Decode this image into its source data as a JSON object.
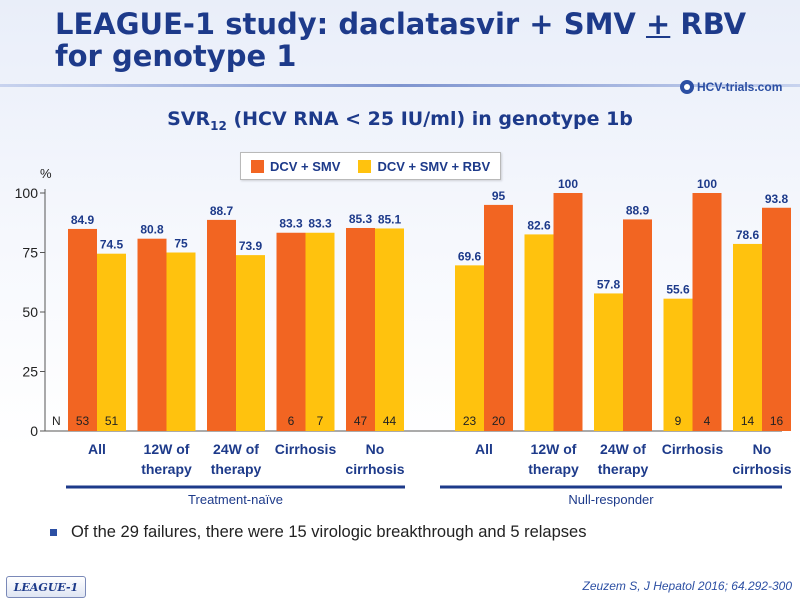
{
  "slide": {
    "title_line1_pre": "LEAGUE-1 study: daclatasvir + SMV ",
    "title_line1_pm": "+",
    "title_line1_post": " RBV",
    "title_line2": "for genotype 1",
    "logo_text": "HCV-trials.com",
    "logo_icon": "hcv-logo-icon",
    "note": "Of the 29 failures, there were 15 virologic breakthrough and 5 relapses",
    "tag": "LEAGUE-1",
    "reference": "Zeuzem S, J Hepatol 2016; 64.292-300"
  },
  "chart_data": {
    "type": "bar",
    "title_main": "SVR",
    "title_sub": "12",
    "title_rest": " (HCV RNA < 25 IU/ml) in genotype 1b",
    "ylabel": "%",
    "ylim": [
      0,
      100
    ],
    "yticks": [
      "0",
      "25",
      "50",
      "75",
      "100"
    ],
    "n_label": "N",
    "colors": {
      "DCV + SMV": "#f26522",
      "DCV + SMV + RBV": "#ffc20e"
    },
    "series": [
      {
        "name": "DCV + SMV",
        "color": "#f26522"
      },
      {
        "name": "DCV + SMV + RBV",
        "color": "#ffc20e"
      }
    ],
    "groups": [
      {
        "name": "Treatment-naïve",
        "categories": [
          {
            "label": [
              "All"
            ],
            "bars": [
              {
                "series": "DCV + SMV",
                "value": 84.9,
                "label": "84.9",
                "n": "53"
              },
              {
                "series": "DCV + SMV + RBV",
                "value": 74.5,
                "label": "74.5",
                "n": "51"
              }
            ]
          },
          {
            "label": [
              "12W of",
              "therapy"
            ],
            "bars": [
              {
                "series": "DCV + SMV",
                "value": 80.8,
                "label": "80.8",
                "n": ""
              },
              {
                "series": "DCV + SMV + RBV",
                "value": 75,
                "label": "75",
                "n": ""
              }
            ]
          },
          {
            "label": [
              "24W of",
              "therapy"
            ],
            "bars": [
              {
                "series": "DCV + SMV",
                "value": 88.7,
                "label": "88.7",
                "n": ""
              },
              {
                "series": "DCV + SMV + RBV",
                "value": 73.9,
                "label": "73.9",
                "n": ""
              }
            ]
          },
          {
            "label": [
              "Cirrhosis"
            ],
            "bars": [
              {
                "series": "DCV + SMV",
                "value": 83.3,
                "label": "83.3",
                "n": "6"
              },
              {
                "series": "DCV + SMV + RBV",
                "value": 83.3,
                "label": "83.3",
                "n": "7"
              }
            ]
          },
          {
            "label": [
              "No",
              "cirrhosis"
            ],
            "bars": [
              {
                "series": "DCV + SMV",
                "value": 85.3,
                "label": "85.3",
                "n": "47"
              },
              {
                "series": "DCV + SMV + RBV",
                "value": 85.1,
                "label": "85.1",
                "n": "44"
              }
            ]
          }
        ]
      },
      {
        "name": "Null-responder",
        "categories": [
          {
            "label": [
              "All"
            ],
            "bars": [
              {
                "series": "DCV + SMV + RBV",
                "value": 69.6,
                "label": "69.6",
                "n": "23"
              },
              {
                "series": "DCV + SMV",
                "value": 95,
                "label": "95",
                "n": "20"
              }
            ]
          },
          {
            "label": [
              "12W of",
              "therapy"
            ],
            "bars": [
              {
                "series": "DCV + SMV + RBV",
                "value": 82.6,
                "label": "82.6",
                "n": ""
              },
              {
                "series": "DCV + SMV",
                "value": 100,
                "label": "100",
                "n": ""
              }
            ]
          },
          {
            "label": [
              "24W of",
              "therapy"
            ],
            "bars": [
              {
                "series": "DCV + SMV + RBV",
                "value": 57.8,
                "label": "57.8",
                "n": ""
              },
              {
                "series": "DCV + SMV",
                "value": 88.9,
                "label": "88.9",
                "n": ""
              }
            ]
          },
          {
            "label": [
              "Cirrhosis"
            ],
            "bars": [
              {
                "series": "DCV + SMV + RBV",
                "value": 55.6,
                "label": "55.6",
                "n": "9"
              },
              {
                "series": "DCV + SMV",
                "value": 100,
                "label": "100",
                "n": "4"
              }
            ]
          },
          {
            "label": [
              "No",
              "cirrhosis"
            ],
            "bars": [
              {
                "series": "DCV + SMV + RBV",
                "value": 78.6,
                "label": "78.6",
                "n": "14"
              },
              {
                "series": "DCV + SMV",
                "value": 93.8,
                "label": "93.8",
                "n": "16"
              }
            ]
          }
        ]
      }
    ]
  }
}
